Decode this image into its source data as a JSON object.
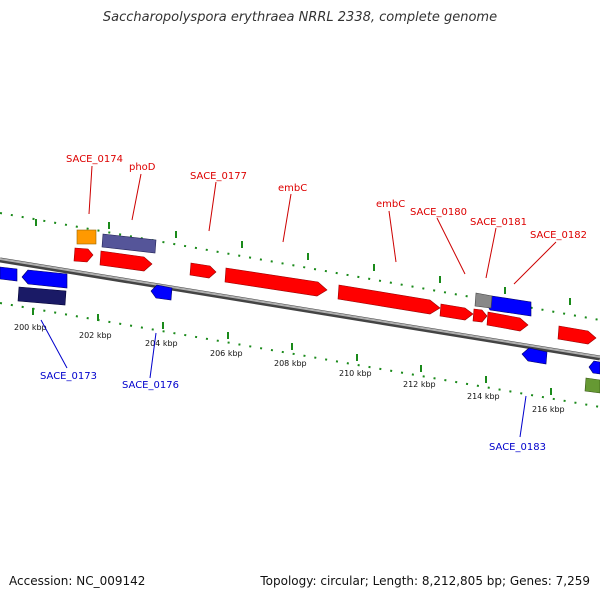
{
  "title": "Saccharopolyspora erythraea NRRL 2338, complete genome",
  "footer": {
    "accession": "Accession: NC_009142",
    "topology": "Topology: circular; Length: 8,212,805 bp; Genes: 7,259"
  },
  "scale_ticks": [
    "200 kbp",
    "202 kbp",
    "204 kbp",
    "206 kbp",
    "208 kbp",
    "210 kbp",
    "212 kbp",
    "214 kbp",
    "216 kbp"
  ],
  "gene_labels_top": [
    "SACE_0174",
    "phoD",
    "SACE_0177",
    "embC",
    "embC",
    "SACE_0180",
    "SACE_0181",
    "SACE_0182"
  ],
  "gene_labels_bottom": [
    "SACE_0173",
    "SACE_0176",
    "SACE_0183"
  ],
  "colors": {
    "plus_strand": "#ff0000",
    "minus_strand": "#0000ff",
    "top_label": "#dd0000",
    "bottom_label": "#0000cc",
    "backbone": "#8c8c8c",
    "tick_marks": "#1a8a1a",
    "orange_feature": "#ff9900",
    "purple_feature": "#555599",
    "navy_feature": "#1a1a66",
    "gray_feature": "#888888",
    "olive_feature": "#669933"
  }
}
